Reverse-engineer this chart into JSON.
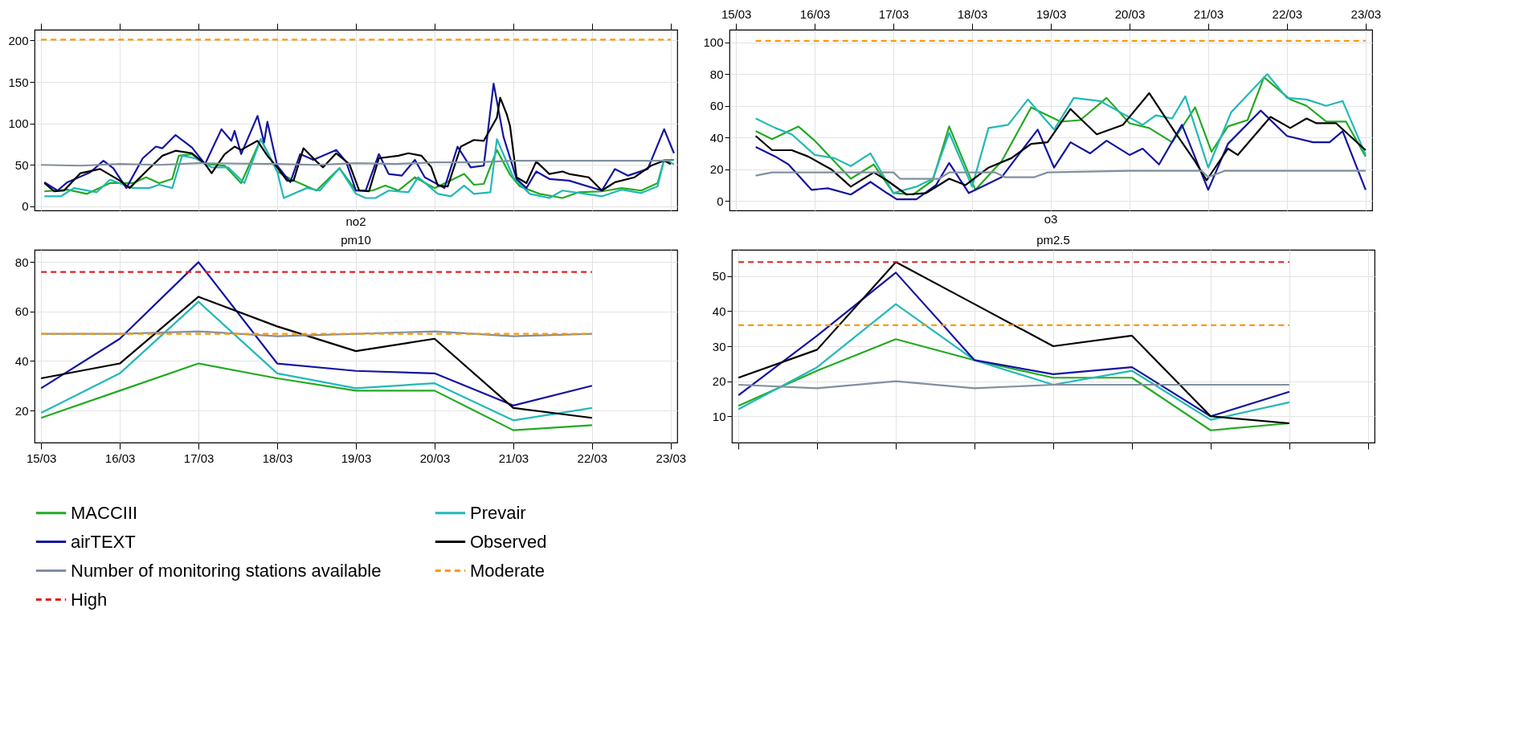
{
  "chart_data": [
    {
      "type": "line",
      "title": "no2",
      "xlim": [
        "--03-14T22:00",
        "--03-23T02:00"
      ],
      "ylim": [
        -5,
        213
      ],
      "yticks": [
        0,
        50,
        100,
        150,
        200
      ],
      "xticks": [
        {
          "value": "--03-15",
          "label": "15/03"
        },
        {
          "value": "--03-16",
          "label": "16/03"
        },
        {
          "value": "--03-17",
          "label": "17/03"
        },
        {
          "value": "--03-18",
          "label": "18/03"
        },
        {
          "value": "--03-19",
          "label": "19/03"
        },
        {
          "value": "--03-20",
          "label": "20/03"
        },
        {
          "value": "--03-21",
          "label": "21/03"
        },
        {
          "value": "--03-22",
          "label": "22/03"
        },
        {
          "value": "--03-23",
          "label": "23/03"
        }
      ],
      "tick_labels": "y",
      "grid": true,
      "legend": "bottom",
      "series": [
        {
          "name": "MACCIII",
          "color": "#22aa22",
          "x": [
            "--03-15T01:00",
            "--03-15T08:00",
            "--03-15T14:00",
            "--03-15T21:00",
            "--03-16T04:00",
            "--03-16T08:00",
            "--03-16T12:00",
            "--03-16T16:00",
            "--03-16T18:00",
            "--03-16T22:00",
            "--03-17T02:00",
            "--03-17T08:00",
            "--03-17T13:00",
            "--03-17T19:00",
            "--03-18T00:00",
            "--03-18T05:00",
            "--03-18T12:00",
            "--03-18T19:00",
            "--03-19T00:00",
            "--03-19T05:00",
            "--03-19T09:00",
            "--03-19T13:00",
            "--03-19T18:00",
            "--03-20T00:00",
            "--03-20T09:00",
            "--03-20T12:00",
            "--03-20T15:00",
            "--03-20T19:00",
            "--03-20T23:00",
            "--03-21T02:00",
            "--03-21T08:00",
            "--03-21T15:00",
            "--03-21T20:00",
            "--03-22T03:00",
            "--03-22T09:00",
            "--03-22T15:00",
            "--03-22T20:00",
            "--03-22T22:00",
            "--03-23T01:00"
          ],
          "values": [
            18,
            20,
            15,
            28,
            28,
            35,
            28,
            33,
            61,
            63,
            51,
            49,
            28,
            81,
            42,
            31,
            19,
            46,
            19,
            19,
            25,
            19,
            35,
            22,
            39,
            26,
            27,
            68,
            38,
            24,
            15,
            10,
            17,
            18,
            22,
            19,
            28,
            56,
            56
          ]
        },
        {
          "name": "Prevair",
          "color": "#22b8b8",
          "x": [
            "--03-15T01:00",
            "--03-15T06:00",
            "--03-15T10:00",
            "--03-15T17:00",
            "--03-15T21:00",
            "--03-16T04:00",
            "--03-16T09:00",
            "--03-16T12:00",
            "--03-16T16:00",
            "--03-16T19:00",
            "--03-16T23:00",
            "--03-17T04:00",
            "--03-17T09:00",
            "--03-17T14:00",
            "--03-17T19:00",
            "--03-18T00:00",
            "--03-18T02:00",
            "--03-18T09:00",
            "--03-18T13:00",
            "--03-18T19:00",
            "--03-19T00:00",
            "--03-19T03:00",
            "--03-19T06:00",
            "--03-19T10:00",
            "--03-19T16:00",
            "--03-19T19:00",
            "--03-20T01:00",
            "--03-20T05:00",
            "--03-20T09:00",
            "--03-20T12:00",
            "--03-20T17:00",
            "--03-20T19:00",
            "--03-21T00:00",
            "--03-21T05:00",
            "--03-21T11:00",
            "--03-21T15:00",
            "--03-21T22:00",
            "--03-22T03:00",
            "--03-22T09:00",
            "--03-22T15:00",
            "--03-22T20:00",
            "--03-22T22:00",
            "--03-23T01:00"
          ],
          "values": [
            12,
            12,
            22,
            17,
            32,
            22,
            22,
            26,
            22,
            61,
            58,
            47,
            47,
            28,
            81,
            42,
            10,
            22,
            19,
            46,
            15,
            10,
            10,
            19,
            17,
            35,
            15,
            12,
            25,
            15,
            17,
            81,
            35,
            15,
            10,
            19,
            15,
            12,
            20,
            16,
            24,
            56,
            51
          ]
        },
        {
          "name": "airTEXT",
          "color": "#1414a0",
          "x": [
            "--03-15T01:00",
            "--03-15T05:00",
            "--03-15T08:00",
            "--03-15T15:00",
            "--03-15T19:00",
            "--03-15T22:00",
            "--03-16T02:00",
            "--03-16T07:00",
            "--03-16T11:00",
            "--03-16T13:00",
            "--03-16T17:00",
            "--03-16T22:00",
            "--03-17T02:00",
            "--03-17T07:00",
            "--03-17T10:00",
            "--03-17T11:00",
            "--03-17T13:00",
            "--03-17T18:00",
            "--03-17T20:00",
            "--03-17T21:00",
            "--03-18T00:00",
            "--03-18T04:00",
            "--03-18T07:00",
            "--03-18T11:00",
            "--03-18T18:00",
            "--03-18T21:00",
            "--03-19T00:00",
            "--03-19T03:00",
            "--03-19T07:00",
            "--03-19T10:00",
            "--03-19T14:00",
            "--03-19T18:00",
            "--03-19T21:00",
            "--03-20T03:00",
            "--03-20T07:00",
            "--03-20T11:00",
            "--03-20T15:00",
            "--03-20T18:00",
            "--03-20T21:00",
            "--03-21T01:00",
            "--03-21T04:00",
            "--03-21T07:00",
            "--03-21T11:00",
            "--03-21T17:00",
            "--03-22T03:00",
            "--03-22T07:00",
            "--03-22T11:00",
            "--03-22T17:00",
            "--03-22T22:00",
            "--03-23T01:00"
          ],
          "values": [
            29,
            19,
            29,
            41,
            55,
            46,
            22,
            58,
            72,
            70,
            86,
            71,
            51,
            93,
            79,
            91,
            63,
            109,
            77,
            102,
            49,
            29,
            63,
            56,
            68,
            54,
            19,
            19,
            63,
            39,
            37,
            56,
            35,
            22,
            72,
            47,
            49,
            148,
            84,
            33,
            22,
            42,
            33,
            31,
            19,
            45,
            37,
            45,
            93,
            64
          ]
        },
        {
          "name": "Observed",
          "color": "#000000",
          "x": [
            "--03-15T01:00",
            "--03-15T04:00",
            "--03-15T07:00",
            "--03-15T12:00",
            "--03-15T18:00",
            "--03-16T00:00",
            "--03-16T03:00",
            "--03-16T08:00",
            "--03-16T13:00",
            "--03-16T17:00",
            "--03-16T22:00",
            "--03-17T02:00",
            "--03-17T04:00",
            "--03-17T08:00",
            "--03-17T11:00",
            "--03-17T13:00",
            "--03-17T18:00",
            "--03-17T21:00",
            "--03-18T00:00",
            "--03-18T03:00",
            "--03-18T05:00",
            "--03-18T08:00",
            "--03-18T12:00",
            "--03-18T14:00",
            "--03-18T18:00",
            "--03-18T22:00",
            "--03-19T01:00",
            "--03-19T04:00",
            "--03-19T07:00",
            "--03-19T13:00",
            "--03-19T16:00",
            "--03-19T20:00",
            "--03-19T23:00",
            "--03-20T01:00",
            "--03-20T04:00",
            "--03-20T08:00",
            "--03-20T12:00",
            "--03-20T15:00",
            "--03-20T19:00",
            "--03-20T20:00",
            "--03-20T22:00",
            "--03-20T23:00",
            "--03-21T01:00",
            "--03-21T04:00",
            "--03-21T07:00",
            "--03-21T11:00",
            "--03-21T15:00",
            "--03-21T17:00",
            "--03-21T23:00",
            "--03-22T03:00",
            "--03-22T07:00",
            "--03-22T13:00",
            "--03-22T18:00",
            "--03-22T22:00",
            "--03-23T00:00"
          ],
          "values": [
            28,
            18,
            19,
            40,
            45,
            31,
            22,
            42,
            61,
            67,
            64,
            51,
            40,
            63,
            72,
            68,
            79,
            61,
            47,
            31,
            31,
            70,
            54,
            47,
            64,
            51,
            19,
            18,
            58,
            61,
            64,
            61,
            47,
            25,
            24,
            72,
            80,
            79,
            107,
            131,
            111,
            97,
            35,
            28,
            54,
            39,
            42,
            39,
            35,
            19,
            29,
            35,
            49,
            55,
            51
          ]
        },
        {
          "name": "Number of monitoring stations available",
          "color": "#8090a0",
          "x": [
            "--03-15T00:00",
            "--03-15T12:00",
            "--03-16T00:00",
            "--03-16T12:00",
            "--03-17T00:00",
            "--03-18T00:00",
            "--03-18T12:00",
            "--03-19T00:00",
            "--03-19T12:00",
            "--03-20T00:00",
            "--03-20T12:00",
            "--03-21T00:00",
            "--03-22T00:00",
            "--03-23T00:00"
          ],
          "values": [
            50,
            49,
            51,
            50,
            52,
            51,
            50,
            52,
            51,
            53,
            53,
            55,
            55,
            55
          ]
        },
        {
          "name": "Moderate",
          "color": "#ff9900",
          "line_style": "dashed",
          "x": [
            "--03-15T00:00",
            "--03-23T00:00"
          ],
          "values": [
            201,
            201
          ]
        }
      ]
    },
    {
      "type": "line",
      "title": "o3",
      "xlim": [
        "--03-14T22:00",
        "--03-23T02:00"
      ],
      "ylim": [
        -6,
        108
      ],
      "yticks": [
        0,
        20,
        40,
        60,
        80,
        100
      ],
      "xticks": [
        {
          "value": "--03-15",
          "label": "15/03"
        },
        {
          "value": "--03-16",
          "label": "16/03"
        },
        {
          "value": "--03-17",
          "label": "17/03"
        },
        {
          "value": "--03-18",
          "label": "18/03"
        },
        {
          "value": "--03-19",
          "label": "19/03"
        },
        {
          "value": "--03-20",
          "label": "20/03"
        },
        {
          "value": "--03-21",
          "label": "21/03"
        },
        {
          "value": "--03-22",
          "label": "22/03"
        },
        {
          "value": "--03-23",
          "label": "23/03"
        }
      ],
      "grid": true,
      "legend": "bottom",
      "series": [
        {
          "name": "MACCIII",
          "color": "#22aa22",
          "x": [
            "--03-15T06:00",
            "--03-15T11:00",
            "--03-15T19:00",
            "--03-16T00:00",
            "--03-16T11:00",
            "--03-16T18:00",
            "--03-17T00:00",
            "--03-17T06:00",
            "--03-17T12:00",
            "--03-17T17:00",
            "--03-18T01:00",
            "--03-18T09:00",
            "--03-18T18:00",
            "--03-19T03:00",
            "--03-19T09:00",
            "--03-19T17:00",
            "--03-20T00:00",
            "--03-20T06:00",
            "--03-20T13:00",
            "--03-20T20:00",
            "--03-21T01:00",
            "--03-21T06:00",
            "--03-21T12:00",
            "--03-21T17:00",
            "--03-22T01:00",
            "--03-22T06:00",
            "--03-22T12:00",
            "--03-22T18:00",
            "--03-23T00:00"
          ],
          "values": [
            44,
            39,
            47,
            38,
            14,
            23,
            5,
            4,
            13,
            47,
            7,
            25,
            59,
            50,
            51,
            65,
            49,
            46,
            37,
            59,
            31,
            47,
            51,
            78,
            64,
            60,
            50,
            50,
            28
          ]
        },
        {
          "name": "Prevair",
          "color": "#22b8b8",
          "x": [
            "--03-15T06:00",
            "--03-15T12:00",
            "--03-15T17:00",
            "--03-16T00:00",
            "--03-16T06:00",
            "--03-16T11:00",
            "--03-16T17:00",
            "--03-17T00:00",
            "--03-17T07:00",
            "--03-17T12:00",
            "--03-17T17:00",
            "--03-18T00:00",
            "--03-18T05:00",
            "--03-18T11:00",
            "--03-18T17:00",
            "--03-19T01:00",
            "--03-19T07:00",
            "--03-19T15:00",
            "--03-19T22:00",
            "--03-20T04:00",
            "--03-20T08:00",
            "--03-20T13:00",
            "--03-20T17:00",
            "--03-21T00:00",
            "--03-21T07:00",
            "--03-21T18:00",
            "--03-22T00:00",
            "--03-22T06:00",
            "--03-22T12:00",
            "--03-22T17:00",
            "--03-23T00:00"
          ],
          "values": [
            52,
            46,
            42,
            29,
            27,
            22,
            30,
            5,
            9,
            14,
            43,
            9,
            46,
            48,
            64,
            45,
            65,
            63,
            55,
            48,
            54,
            52,
            66,
            21,
            56,
            80,
            65,
            64,
            60,
            63,
            29
          ]
        },
        {
          "name": "airTEXT",
          "color": "#1414a0",
          "x": [
            "--03-15T06:00",
            "--03-15T12:00",
            "--03-15T16:00",
            "--03-15T23:00",
            "--03-16T04:00",
            "--03-16T11:00",
            "--03-16T17:00",
            "--03-16T22:00",
            "--03-17T01:00",
            "--03-17T07:00",
            "--03-17T13:00",
            "--03-17T17:00",
            "--03-17T23:00",
            "--03-18T04:00",
            "--03-18T09:00",
            "--03-18T20:00",
            "--03-19T01:00",
            "--03-19T06:00",
            "--03-19T12:00",
            "--03-19T17:00",
            "--03-20T00:00",
            "--03-20T04:00",
            "--03-20T09:00",
            "--03-20T16:00",
            "--03-21T00:00",
            "--03-21T06:00",
            "--03-21T16:00",
            "--03-22T00:00",
            "--03-22T08:00",
            "--03-22T13:00",
            "--03-22T17:00",
            "--03-23T00:00"
          ],
          "values": [
            34,
            28,
            23,
            7,
            8,
            4,
            12,
            5,
            1,
            1,
            10,
            24,
            5,
            10,
            15,
            45,
            21,
            37,
            30,
            38,
            29,
            33,
            23,
            48,
            7,
            36,
            57,
            41,
            37,
            37,
            44,
            7
          ]
        },
        {
          "name": "Observed",
          "color": "#000000",
          "x": [
            "--03-15T06:00",
            "--03-15T11:00",
            "--03-15T17:00",
            "--03-15T22:00",
            "--03-16T05:00",
            "--03-16T11:00",
            "--03-16T18:00",
            "--03-16T22:00",
            "--03-17T04:00",
            "--03-17T10:00",
            "--03-17T17:00",
            "--03-17T22:00",
            "--03-18T05:00",
            "--03-18T12:00",
            "--03-18T18:00",
            "--03-18T23:00",
            "--03-19T06:00",
            "--03-19T14:00",
            "--03-19T22:00",
            "--03-20T06:00",
            "--03-20T14:00",
            "--03-20T20:00",
            "--03-20T23:30",
            "--03-21T06:00",
            "--03-21T09:00",
            "--03-21T19:00",
            "--03-22T01:00",
            "--03-22T06:00",
            "--03-22T09:00",
            "--03-22T15:00",
            "--03-23T00:00"
          ],
          "values": [
            41,
            32,
            32,
            28,
            20,
            9,
            18,
            13,
            4,
            5,
            14,
            10,
            21,
            27,
            36,
            37,
            58,
            42,
            48,
            68,
            43,
            25,
            13,
            33,
            29,
            53,
            46,
            52,
            49,
            49,
            32
          ]
        },
        {
          "name": "Number of monitoring stations available",
          "color": "#8090a0",
          "x": [
            "--03-15T06:00",
            "--03-15T11:00",
            "--03-17T00:00",
            "--03-17T02:00",
            "--03-17T14:00",
            "--03-17T17:00",
            "--03-18T07:00",
            "--03-18T10:00",
            "--03-18T19:00",
            "--03-18T23:00",
            "--03-20T00:00",
            "--03-20T22:00",
            "--03-21T00:00",
            "--03-21T05:00",
            "--03-23T00:00"
          ],
          "values": [
            16,
            18,
            18,
            14,
            14,
            18,
            18,
            15,
            15,
            18,
            19,
            19,
            15,
            19,
            19
          ]
        },
        {
          "name": "Moderate",
          "color": "#ff9900",
          "line_style": "dashed",
          "x": [
            "--03-15T06:00",
            "--03-23T00:00"
          ],
          "values": [
            101,
            101
          ]
        }
      ]
    },
    {
      "type": "line",
      "title": "pm10",
      "xlim": [
        "--03-14T22:00",
        "--03-23T02:00"
      ],
      "ylim": [
        7,
        85
      ],
      "yticks": [
        20,
        40,
        60,
        80
      ],
      "xticks": [
        {
          "value": "--03-15",
          "label": "15/03"
        },
        {
          "value": "--03-16",
          "label": "16/03"
        },
        {
          "value": "--03-17",
          "label": "17/03"
        },
        {
          "value": "--03-18",
          "label": "18/03"
        },
        {
          "value": "--03-19",
          "label": "19/03"
        },
        {
          "value": "--03-20",
          "label": "20/03"
        },
        {
          "value": "--03-21",
          "label": "21/03"
        },
        {
          "value": "--03-22",
          "label": "22/03"
        },
        {
          "value": "--03-23",
          "label": "23/03"
        }
      ],
      "grid": true,
      "legend": "bottom",
      "series": [
        {
          "name": "MACCIII",
          "color": "#22aa22",
          "x": [
            "--03-15",
            "--03-16",
            "--03-17",
            "--03-18",
            "--03-19",
            "--03-20",
            "--03-21",
            "--03-22"
          ],
          "values": [
            17,
            28,
            39,
            33,
            28,
            28,
            12,
            14
          ]
        },
        {
          "name": "Prevair",
          "color": "#22b8b8",
          "x": [
            "--03-15",
            "--03-16",
            "--03-17",
            "--03-18",
            "--03-19",
            "--03-20",
            "--03-21",
            "--03-22"
          ],
          "values": [
            19,
            35,
            64,
            35,
            29,
            31,
            16,
            21
          ]
        },
        {
          "name": "airTEXT",
          "color": "#1414a0",
          "x": [
            "--03-15",
            "--03-16",
            "--03-17",
            "--03-18",
            "--03-19",
            "--03-20",
            "--03-21",
            "--03-22"
          ],
          "values": [
            29,
            49,
            80,
            39,
            36,
            35,
            22,
            30
          ]
        },
        {
          "name": "Observed",
          "color": "#000000",
          "x": [
            "--03-15",
            "--03-16",
            "--03-17",
            "--03-18",
            "--03-19",
            "--03-20",
            "--03-21",
            "--03-22"
          ],
          "values": [
            33,
            39,
            66,
            54,
            44,
            49,
            21,
            17
          ]
        },
        {
          "name": "Number of monitoring stations available",
          "color": "#8090a0",
          "x": [
            "--03-15",
            "--03-16",
            "--03-17",
            "--03-18",
            "--03-19",
            "--03-20",
            "--03-21",
            "--03-22"
          ],
          "values": [
            51,
            51,
            52,
            50,
            51,
            52,
            50,
            51
          ]
        },
        {
          "name": "Moderate",
          "color": "#ff9900",
          "line_style": "dashed",
          "x": [
            "--03-15",
            "--03-22"
          ],
          "values": [
            51,
            51
          ]
        },
        {
          "name": "High",
          "color": "#e02020",
          "line_style": "dashed",
          "x": [
            "--03-15",
            "--03-22"
          ],
          "values": [
            76,
            76
          ]
        }
      ]
    },
    {
      "type": "line",
      "title": "pm2.5",
      "xlim": [
        "--03-14T22:00",
        "--03-23T02:00"
      ],
      "ylim": [
        2.5,
        57.5
      ],
      "yticks": [
        10,
        20,
        30,
        40,
        50
      ],
      "xticks": [
        {
          "value": "--03-15",
          "label": "15/03"
        },
        {
          "value": "--03-16",
          "label": "16/03"
        },
        {
          "value": "--03-17",
          "label": "17/03"
        },
        {
          "value": "--03-18",
          "label": "18/03"
        },
        {
          "value": "--03-19",
          "label": "19/03"
        },
        {
          "value": "--03-20",
          "label": "20/03"
        },
        {
          "value": "--03-21",
          "label": "21/03"
        },
        {
          "value": "--03-22",
          "label": "22/03"
        },
        {
          "value": "--03-23",
          "label": "23/03"
        }
      ],
      "tick_labels": "y",
      "grid": true,
      "legend": "bottom",
      "series": [
        {
          "name": "MACCIII",
          "color": "#22aa22",
          "x": [
            "--03-15",
            "--03-16",
            "--03-17",
            "--03-18",
            "--03-19",
            "--03-20",
            "--03-21",
            "--03-22"
          ],
          "values": [
            13,
            23,
            32,
            26,
            21,
            21,
            6,
            8
          ]
        },
        {
          "name": "Prevair",
          "color": "#22b8b8",
          "x": [
            "--03-15",
            "--03-16",
            "--03-17",
            "--03-18",
            "--03-19",
            "--03-20",
            "--03-21",
            "--03-22"
          ],
          "values": [
            12,
            24,
            42,
            26,
            19,
            23,
            9,
            14
          ]
        },
        {
          "name": "airTEXT",
          "color": "#1414a0",
          "x": [
            "--03-15",
            "--03-16",
            "--03-17",
            "--03-18",
            "--03-19",
            "--03-20",
            "--03-21",
            "--03-22"
          ],
          "values": [
            16,
            33,
            51,
            26,
            22,
            24,
            10,
            17
          ]
        },
        {
          "name": "Observed",
          "color": "#000000",
          "x": [
            "--03-15",
            "--03-16",
            "--03-17",
            "--03-18",
            "--03-19",
            "--03-20",
            "--03-21",
            "--03-22"
          ],
          "values": [
            21,
            29,
            54,
            42,
            30,
            33,
            10,
            8
          ]
        },
        {
          "name": "Number of monitoring stations available",
          "color": "#8090a0",
          "x": [
            "--03-15",
            "--03-16",
            "--03-17",
            "--03-18",
            "--03-19",
            "--03-20",
            "--03-21",
            "--03-22"
          ],
          "values": [
            19,
            18,
            20,
            18,
            19,
            19,
            19,
            19
          ]
        },
        {
          "name": "Moderate",
          "color": "#ff9900",
          "line_style": "dashed",
          "x": [
            "--03-15",
            "--03-22"
          ],
          "values": [
            36,
            36
          ]
        },
        {
          "name": "High",
          "color": "#e02020",
          "line_style": "dashed",
          "x": [
            "--03-15",
            "--03-22"
          ],
          "values": [
            54,
            54
          ]
        }
      ]
    }
  ]
}
